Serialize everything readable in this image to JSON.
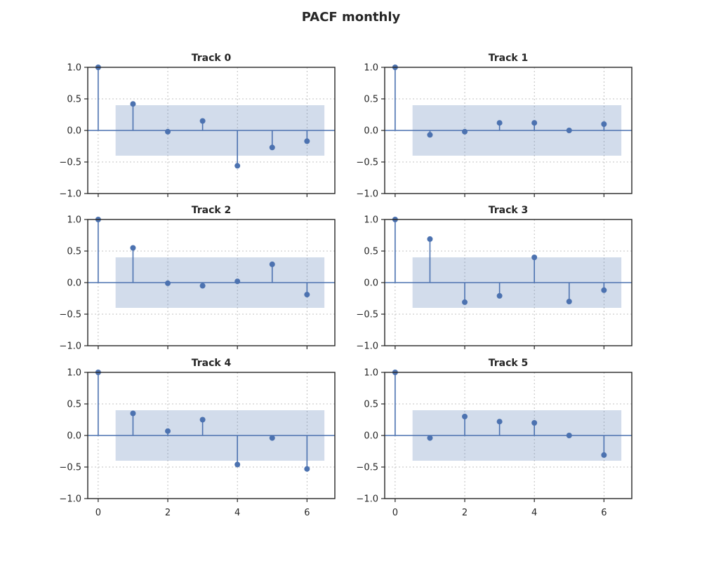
{
  "title": "PACF monthly",
  "colors": {
    "series": "#4c72b0",
    "band": "#4c72b0",
    "axis": "#262626",
    "grid": "#b0b0b0"
  },
  "chart_data": {
    "type": "stem",
    "grid": true,
    "xlim": [
      -0.3,
      6.8
    ],
    "ylim": [
      -1.0,
      1.0
    ],
    "xticks": [
      "0",
      "2",
      "4",
      "6"
    ],
    "yticks": [
      "−1.0",
      "−0.5",
      "0.0",
      "0.5",
      "1.0"
    ],
    "confidence_band": {
      "x_range": [
        0.5,
        6.5
      ],
      "lower": -0.4,
      "upper": 0.4
    },
    "panels": [
      {
        "title": "Track 0",
        "lags": [
          0,
          1,
          2,
          3,
          4,
          5,
          6
        ],
        "values": [
          1.0,
          0.42,
          -0.02,
          0.15,
          -0.56,
          -0.27,
          -0.17
        ]
      },
      {
        "title": "Track 1",
        "lags": [
          0,
          1,
          2,
          3,
          4,
          5,
          6
        ],
        "values": [
          1.0,
          -0.07,
          -0.02,
          0.12,
          0.12,
          0.0,
          0.1
        ]
      },
      {
        "title": "Track 2",
        "lags": [
          0,
          1,
          2,
          3,
          4,
          5,
          6
        ],
        "values": [
          1.0,
          0.55,
          -0.01,
          -0.05,
          0.02,
          0.29,
          -0.19
        ]
      },
      {
        "title": "Track 3",
        "lags": [
          0,
          1,
          2,
          3,
          4,
          5,
          6
        ],
        "values": [
          1.0,
          0.69,
          -0.31,
          -0.21,
          0.4,
          -0.3,
          -0.12
        ]
      },
      {
        "title": "Track 4",
        "lags": [
          0,
          1,
          2,
          3,
          4,
          5,
          6
        ],
        "values": [
          1.0,
          0.35,
          0.07,
          0.25,
          -0.46,
          -0.04,
          -0.53
        ]
      },
      {
        "title": "Track 5",
        "lags": [
          0,
          1,
          2,
          3,
          4,
          5,
          6
        ],
        "values": [
          1.0,
          -0.04,
          0.3,
          0.22,
          0.2,
          0.0,
          -0.31
        ]
      }
    ]
  }
}
